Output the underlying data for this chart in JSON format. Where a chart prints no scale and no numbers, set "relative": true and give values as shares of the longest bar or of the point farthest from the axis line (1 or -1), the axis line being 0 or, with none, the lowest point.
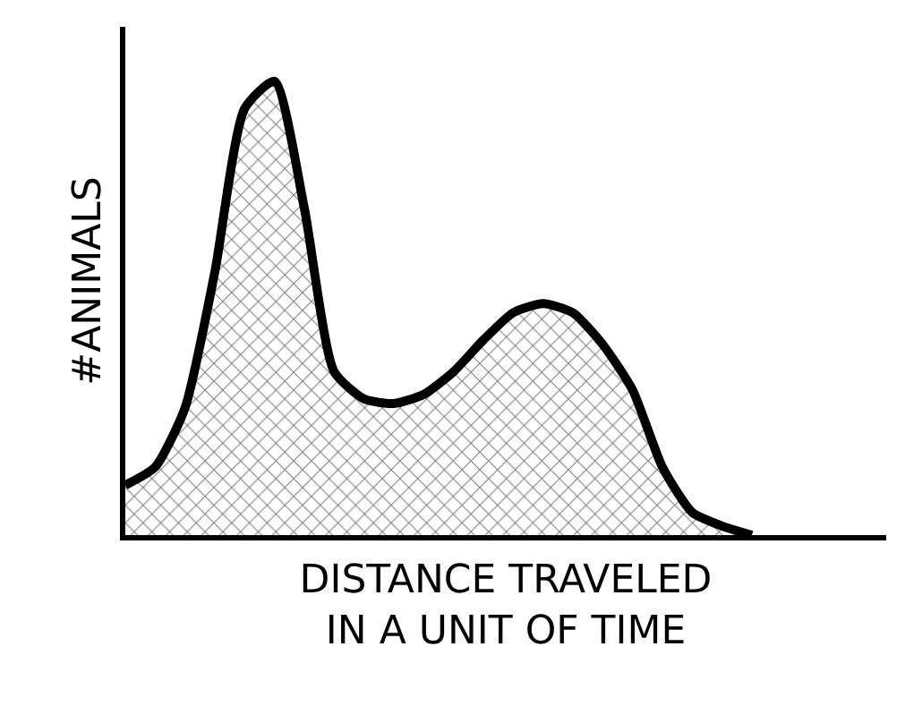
{
  "chart_data": {
    "type": "area",
    "relative": true,
    "xlabel": "DISTANCE TRAVELED\nIN A UNIT OF TIME",
    "ylabel": "#ANIMALS",
    "color": "#000000",
    "categories": [
      null,
      null,
      null,
      null,
      null,
      null,
      null,
      null,
      null,
      null,
      null,
      null,
      null,
      null,
      null,
      null,
      null,
      null,
      null,
      null,
      null,
      null
    ],
    "values": [
      0.11,
      0.15,
      0.28,
      0.58,
      0.94,
      1,
      0.72,
      0.36,
      0.3,
      0.29,
      0.31,
      0.36,
      0.43,
      0.49,
      0.51,
      0.49,
      0.42,
      0.32,
      0.15,
      0.05,
      0.02,
      0
    ],
    "legend": false
  }
}
